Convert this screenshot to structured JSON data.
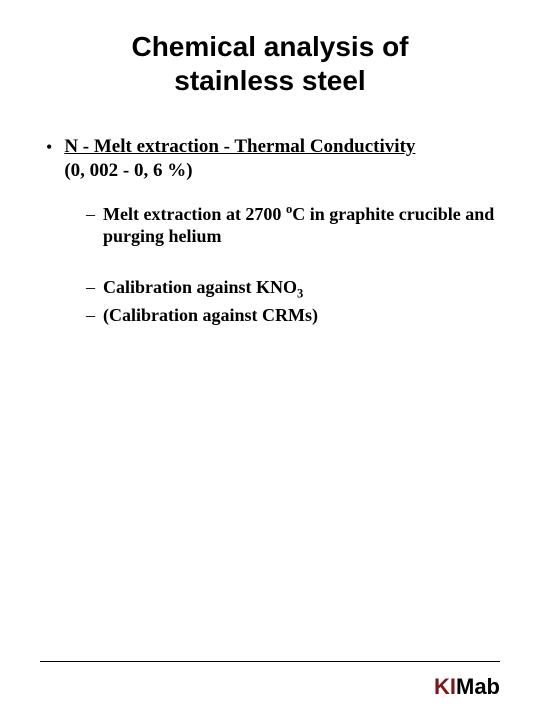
{
  "title": "Chemical analysis of stainless steel",
  "l1": {
    "headline": "N - Melt extraction - Thermal Conductivity",
    "range": "(0, 002 - 0, 6 %)"
  },
  "l2a": {
    "pre": "Melt extraction at 2700 ",
    "unit": "C in graphite crucible and purging helium"
  },
  "l2b": {
    "pre": "Calibration against KNO"
  },
  "l2c": {
    "text": "(Calibration against CRMs)"
  },
  "logo": {
    "k": "K",
    "i": "I",
    "m": "M",
    "ab": "ab"
  },
  "colors": {
    "text": "#000000",
    "background": "#ffffff",
    "logo_accent": "#7a1818"
  },
  "typography": {
    "title_fontsize": 28,
    "body_fontsize": 19,
    "sub_fontsize": 18,
    "title_family": "Arial",
    "body_family": "Times New Roman"
  }
}
